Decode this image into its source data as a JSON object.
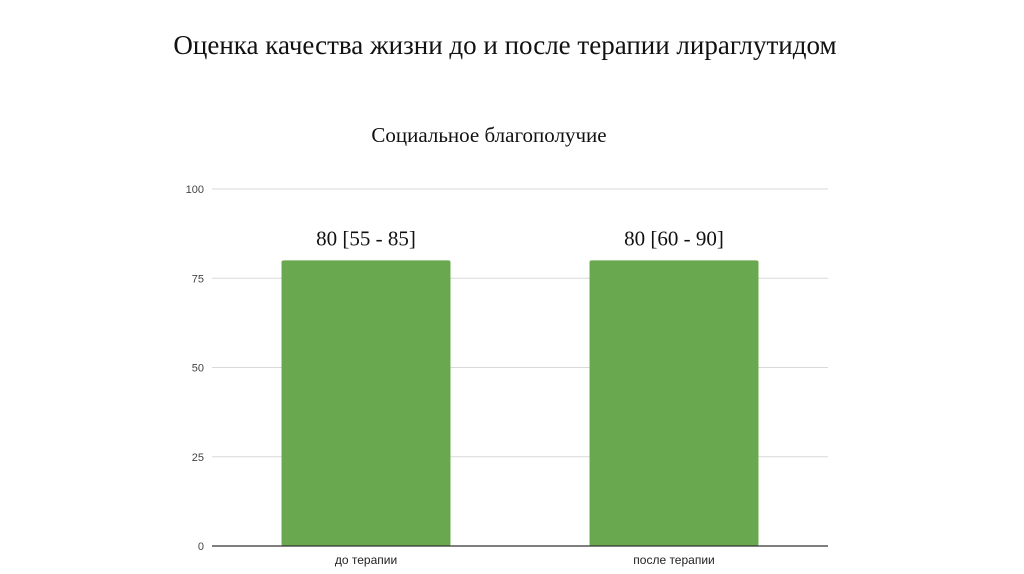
{
  "slide": {
    "title": "Оценка качества жизни до и после терапии лираглутидом"
  },
  "chart_data": {
    "type": "bar",
    "title": "Социальное благополучие",
    "categories": [
      "до терапии",
      "после терапии"
    ],
    "values": [
      80,
      80
    ],
    "data_labels": [
      "80 [55 - 85]",
      "80 [60 - 90]"
    ],
    "ylim": [
      0,
      100
    ],
    "yticks": [
      0,
      25,
      50,
      75,
      100
    ],
    "xlabel": "",
    "ylabel": "",
    "grid": true,
    "bar_color": "#6aa84f"
  }
}
